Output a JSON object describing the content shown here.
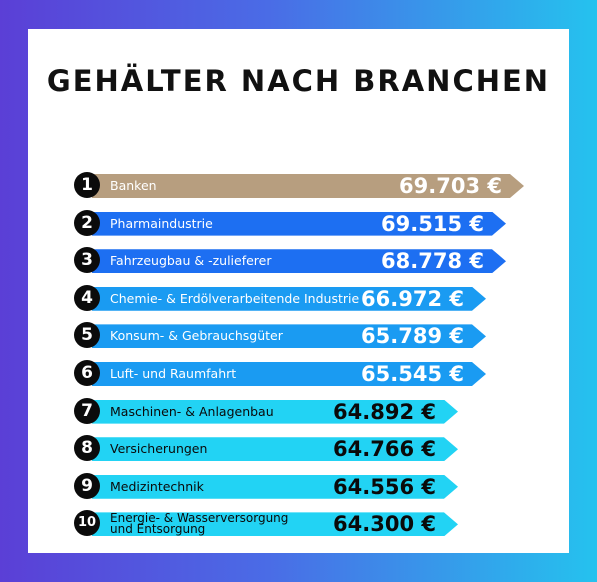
{
  "title": "GEHÄLTER NACH BRANCHEN",
  "colors": {
    "rank1": "#b79e7f",
    "rank2_3": "#1d6ff2",
    "rank4_6": "#1a9bf2",
    "rank7_10": "#22d3f4"
  },
  "chart_data": {
    "type": "bar",
    "title": "GEHÄLTER NACH BRANCHEN",
    "orientation": "horizontal",
    "categories": [
      "Banken",
      "Pharmaindustrie",
      "Fahrzeugbau & -zulieferer",
      "Chemie- & Erdölverarbeitende Industrie",
      "Konsum- & Gebrauchsgüter",
      "Luft- und Raumfahrt",
      "Maschinen- & Anlagenbau",
      "Versicherungen",
      "Medizintechnik",
      "Energie- & Wasserversorgung und Entsorgung"
    ],
    "ranks": [
      "1",
      "2",
      "3",
      "4",
      "5",
      "6",
      "7",
      "8",
      "9",
      "10"
    ],
    "values": [
      69703,
      69515,
      68778,
      66972,
      65789,
      65545,
      64892,
      64766,
      64556,
      64300
    ],
    "value_labels": [
      "69.703 €",
      "69.515 €",
      "68.778 €",
      "66.972 €",
      "65.789 €",
      "65.545 €",
      "64.892 €",
      "64.766 €",
      "64.556 €",
      "64.300 €"
    ],
    "xlabel": "",
    "ylabel": ""
  }
}
